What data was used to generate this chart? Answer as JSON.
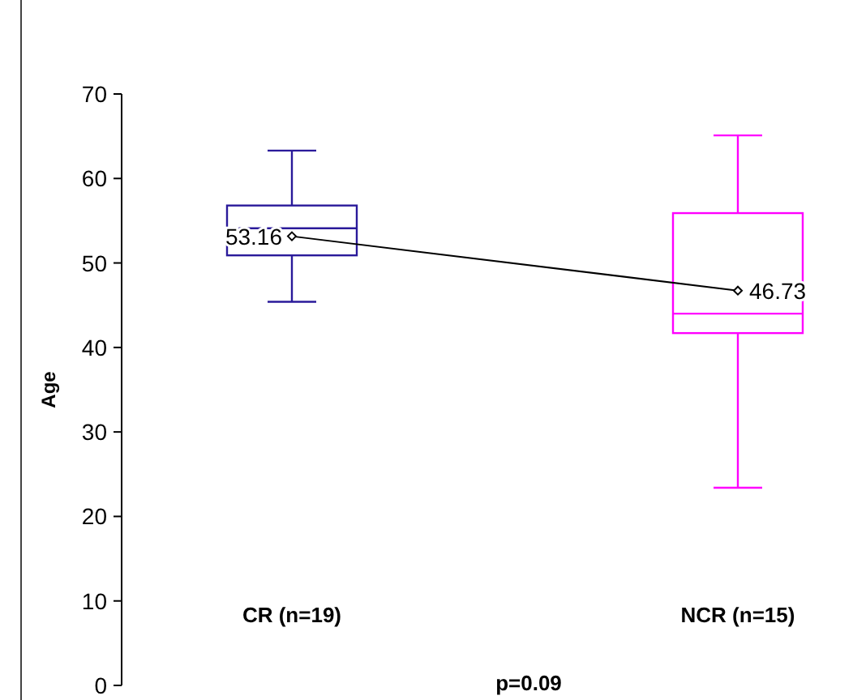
{
  "chart_data": {
    "type": "box",
    "ylabel": "Age",
    "xlabel": "p=0.09",
    "categories": [
      "CR (n=19)",
      "NCR (n=15)"
    ],
    "boxes": [
      {
        "low": 45.4,
        "q1": 50.9,
        "median": 54.1,
        "q3": 56.8,
        "high": 63.3
      },
      {
        "low": 23.4,
        "q1": 41.7,
        "median": 44.0,
        "q3": 55.9,
        "high": 65.1
      }
    ],
    "colors": [
      "#2a1a9a",
      "#ff00ff"
    ],
    "series": [
      {
        "type": "line",
        "color": "#000000",
        "values": [
          53.16,
          46.73
        ],
        "marker": "diamond"
      }
    ],
    "data_labels": true,
    "ylim": [
      0,
      70
    ],
    "yticks": [
      0,
      10,
      20,
      30,
      40,
      50,
      60,
      70
    ],
    "grid": false
  }
}
